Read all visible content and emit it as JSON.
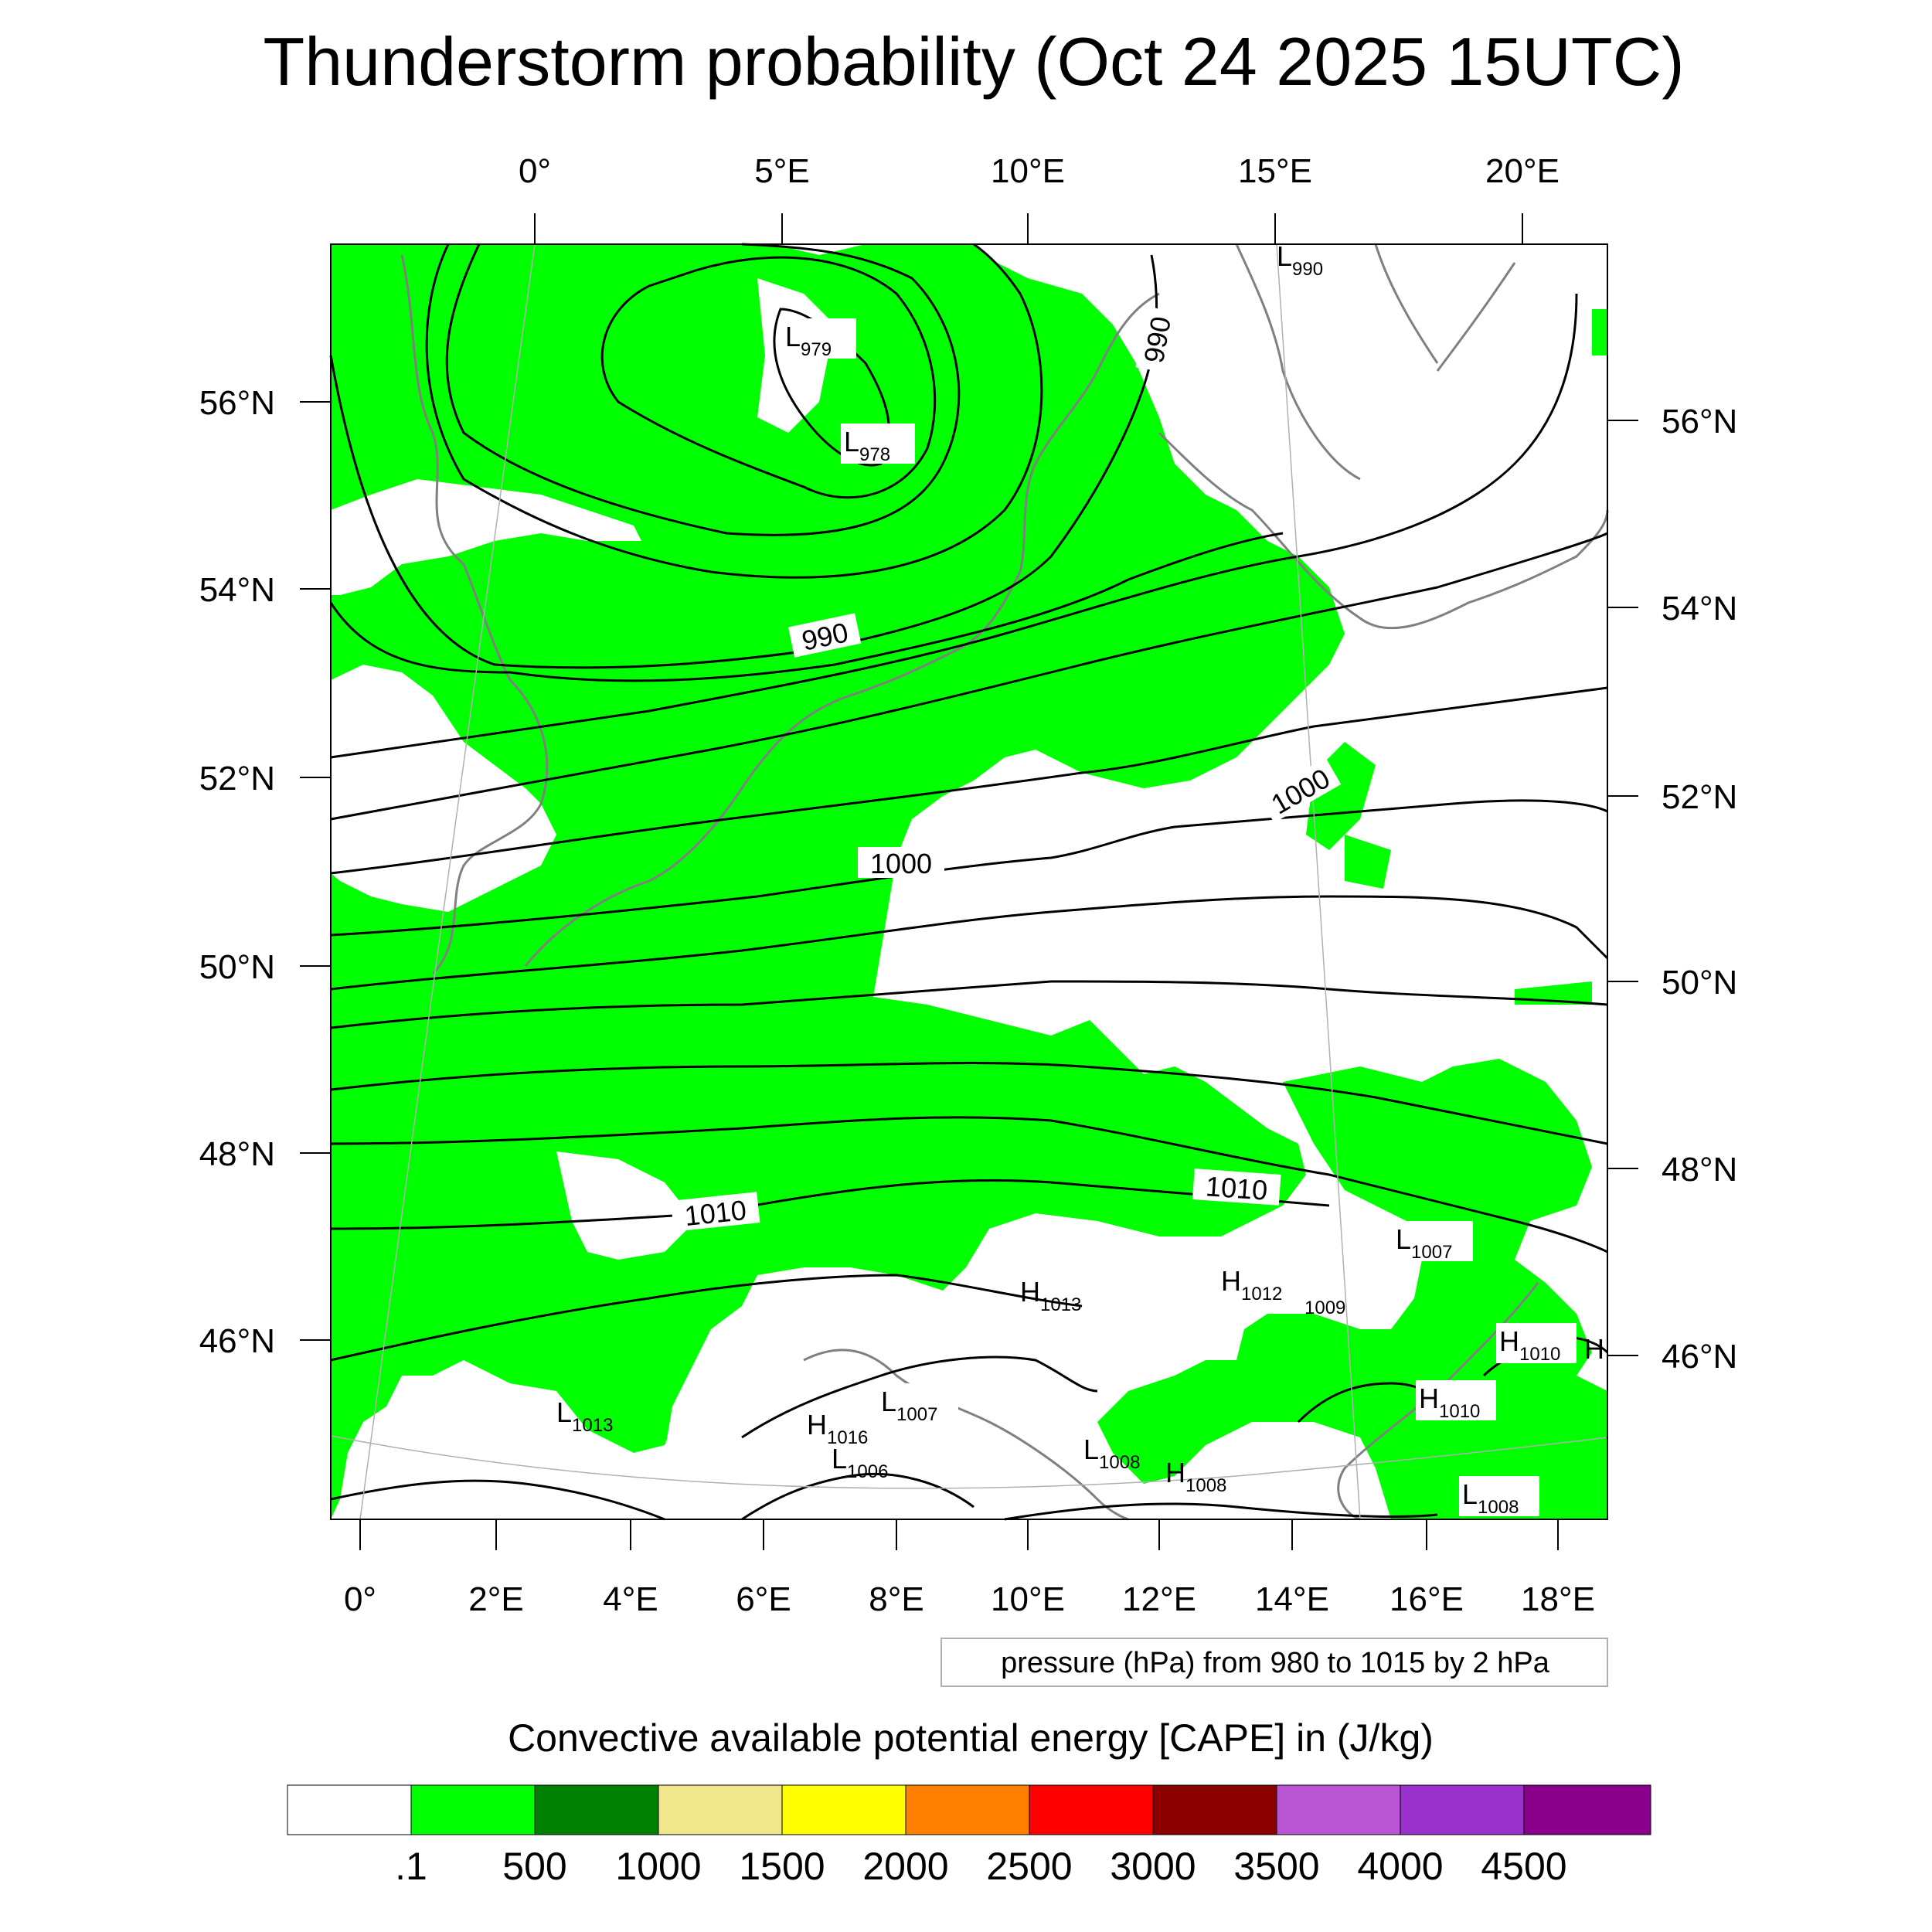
{
  "title": "Thunderstorm probability (Oct 24 2025 15UTC)",
  "top_lon_labels": [
    "0°",
    "5°E",
    "10°E",
    "15°E",
    "20°E"
  ],
  "bottom_lon_labels": [
    "0°",
    "2°E",
    "4°E",
    "6°E",
    "8°E",
    "10°E",
    "12°E",
    "14°E",
    "16°E",
    "18°E"
  ],
  "left_lat_labels": [
    "56°N",
    "54°N",
    "52°N",
    "50°N",
    "48°N",
    "46°N"
  ],
  "right_lat_labels": [
    "56°N",
    "54°N",
    "52°N",
    "50°N",
    "48°N",
    "46°N"
  ],
  "contour_labels": [
    "990",
    "990",
    "1000",
    "1000",
    "1010",
    "1010"
  ],
  "pressure_centers": [
    {
      "letter": "L",
      "value": "979"
    },
    {
      "letter": "L",
      "value": "978"
    },
    {
      "letter": "L",
      "value": "990"
    },
    {
      "letter": "H",
      "value": "1013"
    },
    {
      "letter": "H",
      "value": "1012"
    },
    {
      "letter": "",
      "value": "1009"
    },
    {
      "letter": "L",
      "value": "1007"
    },
    {
      "letter": "H",
      "value": "1010"
    },
    {
      "letter": "H",
      "value": ""
    },
    {
      "letter": "H",
      "value": "1010"
    },
    {
      "letter": "L",
      "value": "1013"
    },
    {
      "letter": "L",
      "value": "1007"
    },
    {
      "letter": "H",
      "value": "1016"
    },
    {
      "letter": "L",
      "value": "1006"
    },
    {
      "letter": "L",
      "value": "1008"
    },
    {
      "letter": "H",
      "value": "1008"
    },
    {
      "letter": "L",
      "value": "1008"
    }
  ],
  "contour_info": "pressure (hPa) from 980 to 1015 by 2 hPa",
  "colorbar": {
    "title": "Convective available potential energy [CAPE] in (J/kg)",
    "colors": [
      "#ffffff",
      "#00ff00",
      "#008000",
      "#f0e68c",
      "#ffff00",
      "#ff8000",
      "#ff0000",
      "#8b0000",
      "#ba55d3",
      "#9932cc",
      "#8b008b"
    ],
    "tick_labels": [
      ".1",
      "500",
      "1000",
      "1500",
      "2000",
      "2500",
      "3000",
      "3500",
      "4000",
      "4500"
    ]
  },
  "shading_color": "#00ff00",
  "coast_color": "#808080"
}
